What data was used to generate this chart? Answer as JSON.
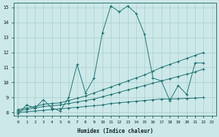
{
  "background_color": "#cce8e8",
  "grid_color": "#aacccc",
  "line_color": "#1a6e6e",
  "xlabel": "Humidex (Indice chaleur)",
  "xlim": [
    0,
    23
  ],
  "ylim": [
    8,
    15
  ],
  "yticks": [
    8,
    9,
    10,
    11,
    12,
    13,
    14,
    15
  ],
  "xticks": [
    0,
    1,
    2,
    3,
    4,
    5,
    6,
    7,
    8,
    9,
    10,
    11,
    12,
    13,
    14,
    15,
    16,
    17,
    18,
    19,
    20,
    21,
    22,
    23
  ],
  "series": [
    {
      "x": [
        0,
        1,
        2,
        3,
        4,
        5,
        6,
        7,
        8,
        9,
        10,
        11,
        12,
        13,
        14,
        15,
        16,
        17,
        18,
        19,
        20,
        21,
        22
      ],
      "y": [
        7.9,
        8.5,
        8.3,
        8.85,
        8.3,
        8.1,
        9.0,
        11.2,
        9.3,
        10.3,
        13.3,
        15.1,
        14.7,
        15.1,
        14.6,
        13.2,
        10.3,
        10.1,
        8.8,
        9.8,
        9.2,
        11.3,
        11.3
      ]
    },
    {
      "x": [
        0,
        1,
        2,
        3,
        4,
        5,
        6,
        7,
        8,
        9,
        10,
        11,
        12,
        13,
        14,
        15,
        16,
        17,
        18,
        19,
        20,
        21,
        22
      ],
      "y": [
        8.0,
        8.05,
        8.1,
        8.15,
        8.2,
        8.25,
        8.3,
        8.35,
        8.4,
        8.45,
        8.5,
        8.6,
        8.65,
        8.7,
        8.75,
        8.8,
        8.85,
        8.9,
        8.9,
        8.92,
        8.94,
        8.96,
        9.0
      ]
    },
    {
      "x": [
        0,
        1,
        2,
        3,
        4,
        5,
        6,
        7,
        8,
        9,
        10,
        11,
        12,
        13,
        14,
        15,
        16,
        17,
        18,
        19,
        20,
        21,
        22
      ],
      "y": [
        8.1,
        8.2,
        8.3,
        8.4,
        8.45,
        8.5,
        8.6,
        8.7,
        8.8,
        8.9,
        9.05,
        9.2,
        9.35,
        9.5,
        9.65,
        9.8,
        9.95,
        10.1,
        10.25,
        10.4,
        10.55,
        10.7,
        10.9
      ]
    },
    {
      "x": [
        0,
        1,
        2,
        3,
        4,
        5,
        6,
        7,
        8,
        9,
        10,
        11,
        12,
        13,
        14,
        15,
        16,
        17,
        18,
        19,
        20,
        21,
        22
      ],
      "y": [
        8.2,
        8.3,
        8.4,
        8.55,
        8.6,
        8.65,
        8.8,
        8.95,
        9.1,
        9.3,
        9.5,
        9.7,
        9.9,
        10.1,
        10.3,
        10.5,
        10.75,
        11.0,
        11.2,
        11.4,
        11.6,
        11.8,
        12.0
      ]
    }
  ]
}
